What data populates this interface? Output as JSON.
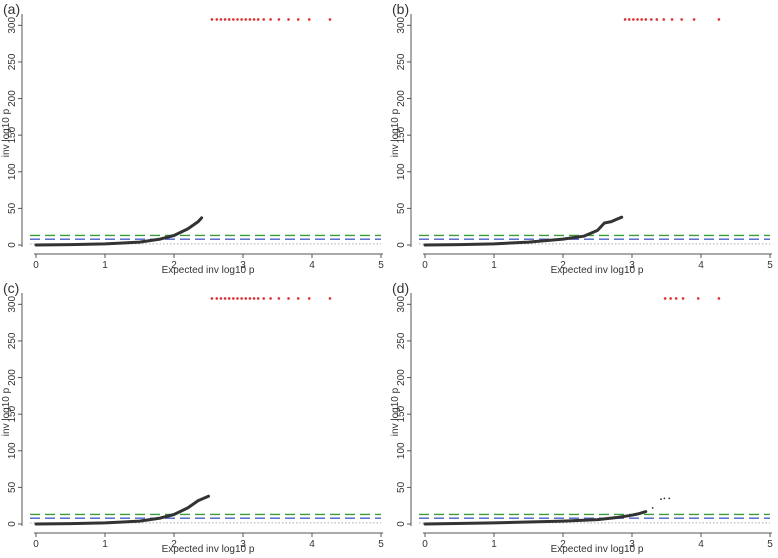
{
  "chart_data": [
    {
      "type": "scatter",
      "panel_label": "(a)",
      "xlabel": "Expected inv log10 p",
      "ylabel": "inv log10 p",
      "xlim": [
        0,
        5
      ],
      "ylim": [
        0,
        310
      ],
      "x_ticks": [
        "0",
        "1",
        "2",
        "3",
        "4",
        "5"
      ],
      "y_ticks": [
        "0",
        "50",
        "100",
        "150",
        "200",
        "250",
        "300"
      ],
      "reference_lines": [
        {
          "name": "green threshold",
          "y": 13,
          "color": "#3a9a3a",
          "style": "dashed"
        },
        {
          "name": "blue threshold",
          "y": 8,
          "color": "#4a5fc8",
          "style": "dashed"
        },
        {
          "name": "null line",
          "y": 1.5,
          "color": "#aaaaaa",
          "style": "dotted"
        }
      ],
      "curve": {
        "name": "observed",
        "color": "#333333",
        "x": [
          0,
          0.5,
          1.0,
          1.5,
          1.8,
          2.0,
          2.2,
          2.35,
          2.4
        ],
        "y": [
          0,
          0.5,
          1.5,
          4,
          8,
          13,
          22,
          32,
          37
        ]
      },
      "capped_points": {
        "name": "capped at 308",
        "color": "#e03030",
        "y": 308,
        "x": [
          2.55,
          2.62,
          2.68,
          2.74,
          2.8,
          2.86,
          2.92,
          2.98,
          3.04,
          3.1,
          3.16,
          3.22,
          3.3,
          3.4,
          3.52,
          3.66,
          3.8,
          3.96,
          4.26
        ]
      },
      "extra_points": []
    },
    {
      "type": "scatter",
      "panel_label": "(b)",
      "xlabel": "Expected inv log10 p",
      "ylabel": "inv log10 p",
      "xlim": [
        0,
        5
      ],
      "ylim": [
        0,
        310
      ],
      "x_ticks": [
        "0",
        "1",
        "2",
        "3",
        "4",
        "5"
      ],
      "y_ticks": [
        "0",
        "50",
        "100",
        "150",
        "200",
        "250",
        "300"
      ],
      "reference_lines": [
        {
          "name": "green threshold",
          "y": 13,
          "color": "#3a9a3a",
          "style": "dashed"
        },
        {
          "name": "blue threshold",
          "y": 8,
          "color": "#4a5fc8",
          "style": "dashed"
        },
        {
          "name": "null line",
          "y": 1.5,
          "color": "#aaaaaa",
          "style": "dotted"
        }
      ],
      "curve": {
        "name": "observed",
        "color": "#333333",
        "x": [
          0,
          0.5,
          1.0,
          1.5,
          2.0,
          2.3,
          2.5,
          2.6,
          2.7,
          2.8,
          2.85
        ],
        "y": [
          0,
          0.5,
          1.5,
          4,
          8,
          12,
          20,
          30,
          32,
          36,
          38
        ]
      },
      "capped_points": {
        "name": "capped at 308",
        "color": "#e03030",
        "y": 308,
        "x": [
          2.9,
          2.96,
          3.02,
          3.08,
          3.14,
          3.2,
          3.28,
          3.36,
          3.46,
          3.58,
          3.72,
          3.9,
          4.26
        ]
      },
      "extra_points": []
    },
    {
      "type": "scatter",
      "panel_label": "(c)",
      "xlabel": "Expected inv log10 p",
      "ylabel": "inv log10 p",
      "xlim": [
        0,
        5
      ],
      "ylim": [
        0,
        310
      ],
      "x_ticks": [
        "0",
        "1",
        "2",
        "3",
        "4",
        "5"
      ],
      "y_ticks": [
        "0",
        "50",
        "100",
        "150",
        "200",
        "250",
        "300"
      ],
      "reference_lines": [
        {
          "name": "green threshold",
          "y": 13,
          "color": "#3a9a3a",
          "style": "dashed"
        },
        {
          "name": "blue threshold",
          "y": 8,
          "color": "#4a5fc8",
          "style": "dashed"
        },
        {
          "name": "null line",
          "y": 1.5,
          "color": "#aaaaaa",
          "style": "dotted"
        }
      ],
      "curve": {
        "name": "observed",
        "color": "#333333",
        "x": [
          0,
          0.5,
          1.0,
          1.5,
          1.8,
          2.0,
          2.2,
          2.35,
          2.5
        ],
        "y": [
          0,
          0.5,
          1.5,
          4,
          8,
          13,
          22,
          32,
          38
        ]
      },
      "capped_points": {
        "name": "capped at 308",
        "color": "#e03030",
        "y": 308,
        "x": [
          2.55,
          2.62,
          2.68,
          2.74,
          2.8,
          2.86,
          2.92,
          2.98,
          3.04,
          3.1,
          3.16,
          3.22,
          3.3,
          3.4,
          3.52,
          3.66,
          3.8,
          3.96,
          4.26
        ]
      },
      "extra_points": []
    },
    {
      "type": "scatter",
      "panel_label": "(d)",
      "xlabel": "Expected inv log10 p",
      "ylabel": "inv log10 p",
      "xlim": [
        0,
        5
      ],
      "ylim": [
        0,
        310
      ],
      "x_ticks": [
        "0",
        "1",
        "2",
        "3",
        "4",
        "5"
      ],
      "y_ticks": [
        "0",
        "50",
        "100",
        "150",
        "200",
        "250",
        "300"
      ],
      "reference_lines": [
        {
          "name": "green threshold",
          "y": 13,
          "color": "#3a9a3a",
          "style": "dashed"
        },
        {
          "name": "blue threshold",
          "y": 8,
          "color": "#4a5fc8",
          "style": "dashed"
        },
        {
          "name": "null line",
          "y": 1.5,
          "color": "#aaaaaa",
          "style": "dotted"
        }
      ],
      "curve": {
        "name": "observed",
        "color": "#333333",
        "x": [
          0,
          1.0,
          2.0,
          2.5,
          2.8,
          3.0,
          3.1,
          3.2
        ],
        "y": [
          0,
          1.5,
          4,
          6,
          9,
          12,
          14,
          17
        ]
      },
      "capped_points": {
        "name": "capped at 308",
        "color": "#e03030",
        "y": 308,
        "x": [
          3.48,
          3.56,
          3.64,
          3.74,
          3.96,
          4.26
        ]
      },
      "extra_points": [
        {
          "x": 3.3,
          "y": 22,
          "color": "#333333"
        },
        {
          "x": 3.42,
          "y": 34,
          "color": "#333333"
        },
        {
          "x": 3.47,
          "y": 35,
          "color": "#333333"
        },
        {
          "x": 3.54,
          "y": 35,
          "color": "#333333"
        }
      ]
    }
  ]
}
